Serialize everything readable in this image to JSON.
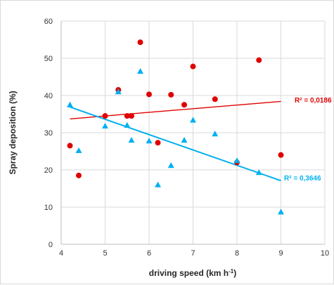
{
  "chart_data": {
    "type": "scatter",
    "title": "",
    "xlabel": "driving speed (km h",
    "xlabel_sup": "-1",
    "xlabel_suffix": ")",
    "ylabel": "Spray deposition (%)",
    "xlim": [
      4,
      10
    ],
    "ylim": [
      0,
      60
    ],
    "x_ticks": [
      "4",
      "5",
      "6",
      "7",
      "8",
      "9",
      "10"
    ],
    "y_ticks": [
      "0",
      "10",
      "20",
      "30",
      "40",
      "50",
      "60"
    ],
    "grid": "vertical and horizontal",
    "series": [
      {
        "marker": "circle",
        "color": "#e00000",
        "points": [
          [
            4.2,
            26.5
          ],
          [
            4.4,
            18.5
          ],
          [
            5.0,
            34.5
          ],
          [
            5.3,
            41.5
          ],
          [
            5.5,
            34.5
          ],
          [
            5.6,
            34.5
          ],
          [
            5.8,
            54.3
          ],
          [
            6.0,
            40.3
          ],
          [
            6.2,
            27.3
          ],
          [
            6.5,
            40.2
          ],
          [
            6.8,
            37.5
          ],
          [
            7.0,
            47.8
          ],
          [
            7.5,
            39.0
          ],
          [
            8.0,
            22.0
          ],
          [
            8.5,
            49.5
          ],
          [
            9.0,
            24.0
          ]
        ],
        "trend": {
          "x": [
            4.2,
            9.0
          ],
          "y": [
            33.7,
            38.4
          ]
        },
        "r2_label": "R² = 0,0186"
      },
      {
        "marker": "triangle",
        "color": "#00b0f0",
        "points": [
          [
            4.2,
            37.5
          ],
          [
            4.4,
            25.2
          ],
          [
            5.0,
            31.8
          ],
          [
            5.3,
            41.0
          ],
          [
            5.5,
            32.0
          ],
          [
            5.6,
            28.0
          ],
          [
            5.8,
            46.5
          ],
          [
            6.0,
            27.8
          ],
          [
            6.2,
            16.0
          ],
          [
            6.5,
            21.2
          ],
          [
            6.8,
            28.0
          ],
          [
            7.0,
            33.4
          ],
          [
            7.5,
            29.7
          ],
          [
            8.0,
            22.5
          ],
          [
            8.5,
            19.3
          ],
          [
            9.0,
            8.7
          ]
        ],
        "trend": {
          "x": [
            4.2,
            9.0
          ],
          "y": [
            36.9,
            17.1
          ]
        },
        "r2_label": "R² = 0,3646"
      }
    ]
  }
}
